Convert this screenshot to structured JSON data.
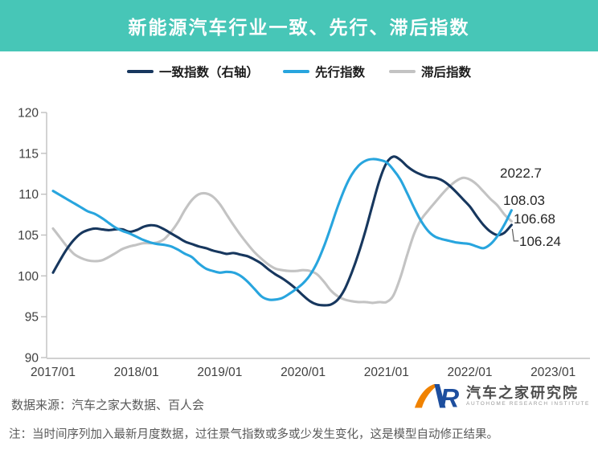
{
  "title": "新能源汽车行业一致、先行、滞后指数",
  "colors": {
    "banner": "#47C6B7",
    "coincident": "#17375E",
    "leading": "#28A5DE",
    "lagging": "#C3C3C3",
    "axis_line": "#C0C0C0",
    "axis_text": "#3F3F3F",
    "annotation_text": "#262626",
    "connector": "#595959",
    "logo_orange": "#F08200",
    "logo_blue": "#1D4E9E"
  },
  "legend": [
    {
      "label": "一致指数（右轴）"
    },
    {
      "label": "先行指数"
    },
    {
      "label": "滞后指数"
    }
  ],
  "annotations": {
    "date": "2022.7",
    "leading": "108.03",
    "lagging": "106.68",
    "coincident": "106.24"
  },
  "footer": {
    "source": "数据来源：汽车之家大数据、百人会",
    "note": "注：当时间序列加入最新月度数据，过往景气指数或多或少发生变化，这是模型自动修正结果。"
  },
  "logo": {
    "cn": "汽车之家研究院",
    "en": "AUTOHOME RESEARCH INSTITUTE"
  },
  "chart_data": {
    "type": "line",
    "title": "新能源汽车行业一致、先行、滞后指数",
    "x_start": "2017/01",
    "x_end": "2022/07",
    "x_unit": "month",
    "x_tick_labels": [
      "2017/01",
      "2018/01",
      "2019/01",
      "2020/01",
      "2021/01",
      "2022/01",
      "2023/01"
    ],
    "y_ticks": [
      90,
      95,
      100,
      105,
      110,
      115,
      120
    ],
    "ylim": [
      90,
      120
    ],
    "grid": false,
    "legend_position": "top",
    "series": [
      {
        "name": "一致指数（右轴）",
        "color_key": "coincident",
        "end_value": 106.24,
        "values": [
          100.4,
          101.9,
          103.3,
          104.4,
          105.2,
          105.6,
          105.8,
          105.7,
          105.6,
          105.7,
          105.7,
          105.4,
          105.6,
          106.0,
          106.2,
          106.1,
          105.7,
          105.2,
          104.7,
          104.2,
          103.9,
          103.6,
          103.4,
          103.1,
          102.9,
          102.7,
          102.8,
          102.6,
          102.4,
          102.0,
          101.5,
          100.8,
          100.2,
          99.7,
          99.1,
          98.4,
          97.6,
          96.9,
          96.5,
          96.4,
          96.5,
          97.1,
          98.4,
          100.4,
          102.8,
          105.6,
          108.7,
          111.7,
          113.8,
          114.6,
          114.2,
          113.4,
          112.8,
          112.4,
          112.1,
          112.0,
          111.7,
          111.1,
          110.3,
          109.4,
          108.5,
          107.3,
          106.2,
          105.4,
          105.0,
          105.3,
          106.24
        ]
      },
      {
        "name": "先行指数",
        "color_key": "leading",
        "end_value": 108.03,
        "values": [
          110.4,
          109.9,
          109.4,
          108.9,
          108.4,
          107.9,
          107.6,
          107.1,
          106.5,
          105.9,
          105.5,
          105.2,
          104.8,
          104.4,
          104.1,
          103.9,
          103.8,
          103.6,
          103.2,
          102.7,
          102.3,
          101.5,
          100.9,
          100.6,
          100.4,
          100.5,
          100.4,
          100.0,
          99.3,
          98.4,
          97.5,
          97.1,
          97.1,
          97.3,
          97.8,
          98.4,
          99.1,
          100.1,
          101.6,
          103.6,
          106.0,
          108.5,
          110.7,
          112.4,
          113.5,
          114.1,
          114.3,
          114.2,
          113.9,
          113.0,
          111.8,
          110.1,
          108.3,
          106.7,
          105.5,
          104.8,
          104.5,
          104.3,
          104.1,
          104.0,
          103.9,
          103.6,
          103.4,
          103.9,
          104.9,
          106.3,
          108.03
        ]
      },
      {
        "name": "滞后指数",
        "color_key": "lagging",
        "end_value": 106.68,
        "values": [
          105.8,
          104.7,
          103.6,
          102.7,
          102.2,
          101.9,
          101.8,
          101.9,
          102.3,
          102.8,
          103.3,
          103.6,
          103.8,
          104.0,
          104.0,
          104.1,
          104.5,
          105.4,
          106.6,
          108.1,
          109.3,
          110.0,
          110.1,
          109.7,
          108.8,
          107.5,
          106.2,
          105.0,
          103.9,
          102.9,
          102.1,
          101.4,
          100.9,
          100.7,
          100.6,
          100.6,
          100.7,
          100.6,
          100.2,
          99.3,
          98.2,
          97.5,
          97.1,
          96.9,
          96.8,
          96.8,
          96.7,
          96.8,
          96.8,
          97.6,
          99.8,
          102.6,
          105.2,
          106.9,
          108.0,
          109.0,
          110.0,
          110.9,
          111.6,
          112.0,
          111.8,
          111.2,
          110.3,
          109.4,
          108.6,
          107.5,
          106.68
        ]
      }
    ]
  }
}
